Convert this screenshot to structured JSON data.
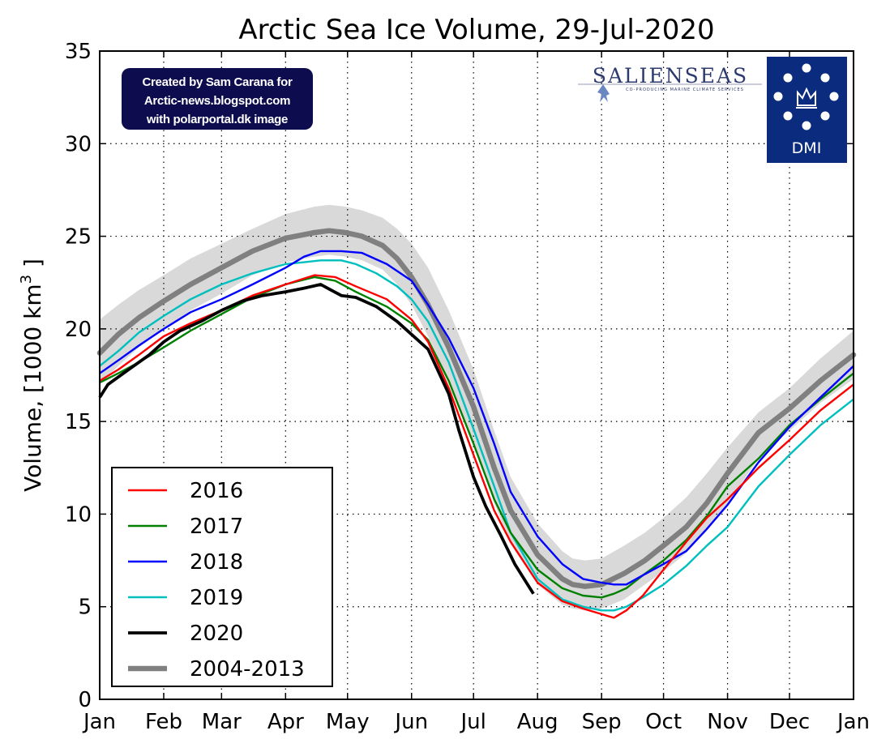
{
  "chart_data": {
    "type": "line",
    "title": "Arctic Sea Ice Volume, 29-Jul-2020",
    "xlabel": "",
    "ylabel_main": "Volume, [1000 km",
    "ylabel_sup": "3",
    "ylabel_end": " ]",
    "ylim": [
      0,
      35
    ],
    "yticks": [
      0,
      5,
      10,
      15,
      20,
      25,
      30,
      35
    ],
    "ytick_labels": [
      "0",
      "5",
      "10",
      "15",
      "20",
      "25",
      "30",
      "35"
    ],
    "x_unit": "day of year",
    "xlim": [
      1,
      366
    ],
    "xticks": [
      1,
      32,
      60,
      91,
      121,
      152,
      182,
      213,
      244,
      274,
      305,
      335,
      366
    ],
    "xtick_labels": [
      "Jan",
      "Feb",
      "Mar",
      "Apr",
      "May",
      "Jun",
      "Jul",
      "Aug",
      "Sep",
      "Oct",
      "Nov",
      "Dec",
      "Jan"
    ],
    "grid": true,
    "legend_position": "bottom-left",
    "series": [
      {
        "name": "2016",
        "color": "#ff0000",
        "width": 2.4,
        "x": [
          1,
          10,
          20,
          32,
          45,
          60,
          75,
          91,
          105,
          115,
          125,
          140,
          152,
          160,
          170,
          182,
          192,
          200,
          213,
          225,
          235,
          244,
          250,
          256,
          264,
          274,
          285,
          295,
          305,
          320,
          335,
          350,
          366
        ],
        "y": [
          17.2,
          17.8,
          18.6,
          19.6,
          20.3,
          21.0,
          21.8,
          22.4,
          22.9,
          22.8,
          22.3,
          21.6,
          20.5,
          19.3,
          16.8,
          13.2,
          10.2,
          8.5,
          6.3,
          5.3,
          4.9,
          4.6,
          4.4,
          4.8,
          5.6,
          7.0,
          8.5,
          9.8,
          10.8,
          12.5,
          14.0,
          15.6,
          17.0
        ]
      },
      {
        "name": "2017",
        "color": "#008000",
        "width": 2.4,
        "x": [
          1,
          10,
          20,
          32,
          45,
          60,
          75,
          91,
          105,
          115,
          125,
          140,
          152,
          160,
          170,
          182,
          192,
          200,
          213,
          225,
          235,
          244,
          250,
          256,
          264,
          274,
          285,
          295,
          305,
          320,
          335,
          350,
          366
        ],
        "y": [
          17.1,
          17.6,
          18.2,
          19.0,
          19.9,
          20.8,
          21.7,
          22.4,
          22.8,
          22.6,
          22.0,
          21.2,
          20.3,
          19.4,
          17.2,
          13.8,
          10.8,
          9.0,
          7.0,
          6.0,
          5.6,
          5.5,
          5.7,
          6.0,
          6.7,
          7.5,
          8.6,
          9.9,
          11.5,
          13.0,
          14.8,
          16.2,
          17.6
        ]
      },
      {
        "name": "2018",
        "color": "#0000ff",
        "width": 2.4,
        "x": [
          1,
          10,
          20,
          32,
          45,
          60,
          75,
          91,
          100,
          108,
          118,
          128,
          140,
          152,
          160,
          170,
          182,
          192,
          200,
          213,
          225,
          235,
          244,
          250,
          256,
          264,
          274,
          285,
          295,
          305,
          320,
          335,
          350,
          366
        ],
        "y": [
          17.6,
          18.3,
          19.1,
          20.0,
          20.9,
          21.6,
          22.4,
          23.3,
          23.9,
          24.2,
          24.2,
          24.1,
          23.5,
          22.6,
          21.3,
          19.5,
          16.8,
          13.8,
          11.2,
          8.8,
          7.3,
          6.5,
          6.3,
          6.2,
          6.2,
          6.7,
          7.3,
          8.0,
          9.2,
          10.5,
          12.8,
          14.7,
          16.3,
          18.0
        ]
      },
      {
        "name": "2019",
        "color": "#00bfbf",
        "width": 2.4,
        "x": [
          1,
          10,
          20,
          32,
          45,
          60,
          75,
          91,
          100,
          108,
          118,
          125,
          135,
          145,
          152,
          160,
          170,
          182,
          192,
          200,
          213,
          225,
          235,
          244,
          250,
          256,
          264,
          274,
          285,
          295,
          305,
          320,
          335,
          350,
          366
        ],
        "y": [
          18.0,
          18.8,
          19.8,
          20.7,
          21.6,
          22.4,
          23.0,
          23.5,
          23.6,
          23.7,
          23.7,
          23.5,
          23.0,
          22.3,
          21.6,
          20.4,
          18.2,
          14.6,
          11.5,
          9.0,
          6.5,
          5.4,
          5.0,
          4.8,
          4.8,
          5.0,
          5.5,
          6.2,
          7.2,
          8.3,
          9.3,
          11.5,
          13.2,
          14.8,
          16.2
        ]
      },
      {
        "name": "2020",
        "color": "#000000",
        "width": 3.8,
        "x": [
          1,
          5,
          15,
          25,
          32,
          40,
          50,
          60,
          70,
          80,
          91,
          100,
          108,
          113,
          118,
          125,
          135,
          145,
          152,
          160,
          170,
          175,
          182,
          188,
          195,
          202,
          211
        ],
        "y": [
          16.3,
          17.0,
          17.8,
          18.6,
          19.3,
          19.9,
          20.4,
          21.0,
          21.5,
          21.8,
          22.0,
          22.2,
          22.4,
          22.1,
          21.8,
          21.7,
          21.2,
          20.4,
          19.7,
          18.9,
          16.5,
          14.5,
          12.0,
          10.4,
          8.9,
          7.3,
          5.7
        ]
      }
    ],
    "mean_series": {
      "name": "2004-2013",
      "color": "#808080",
      "width": 6.5,
      "x": [
        1,
        10,
        20,
        32,
        45,
        60,
        75,
        91,
        105,
        112,
        120,
        128,
        138,
        145,
        152,
        160,
        170,
        182,
        192,
        200,
        213,
        225,
        230,
        236,
        244,
        255,
        265,
        274,
        285,
        295,
        305,
        320,
        335,
        350,
        366
      ],
      "y": [
        18.7,
        19.7,
        20.6,
        21.5,
        22.4,
        23.3,
        24.2,
        24.9,
        25.2,
        25.3,
        25.2,
        25.0,
        24.5,
        23.8,
        22.8,
        21.3,
        19.0,
        15.8,
        12.5,
        10.2,
        7.8,
        6.5,
        6.2,
        6.1,
        6.2,
        6.8,
        7.5,
        8.3,
        9.3,
        10.6,
        12.2,
        14.4,
        15.7,
        17.2,
        18.6
      ]
    },
    "band": {
      "color": "#d9d9d9",
      "x": [
        1,
        10,
        20,
        32,
        45,
        60,
        75,
        91,
        105,
        112,
        120,
        128,
        138,
        145,
        152,
        160,
        170,
        182,
        192,
        200,
        213,
        225,
        230,
        236,
        244,
        255,
        265,
        274,
        285,
        295,
        305,
        320,
        335,
        350,
        366
      ],
      "upper": [
        20.5,
        21.3,
        22.1,
        22.9,
        23.8,
        24.6,
        25.4,
        26.2,
        26.6,
        26.7,
        26.6,
        26.4,
        26.0,
        25.4,
        24.6,
        23.3,
        21.0,
        17.8,
        14.5,
        12.0,
        9.5,
        8.0,
        7.6,
        7.5,
        7.6,
        8.3,
        9.0,
        9.8,
        10.9,
        12.2,
        13.6,
        15.5,
        16.8,
        18.4,
        19.9
      ],
      "lower": [
        17.0,
        18.0,
        19.0,
        20.0,
        21.0,
        21.9,
        22.9,
        23.6,
        23.9,
        24.0,
        23.9,
        23.7,
        23.2,
        22.4,
        21.3,
        19.6,
        17.2,
        13.8,
        10.6,
        8.4,
        6.2,
        5.1,
        4.9,
        4.8,
        4.9,
        5.4,
        6.2,
        6.9,
        7.9,
        9.1,
        10.6,
        13.0,
        14.5,
        16.0,
        17.3
      ]
    }
  },
  "credit": {
    "line1": "Created by Sam Carana for",
    "line2": "Arctic-news.blogspot.com",
    "line3": "with polarportal.dk image"
  },
  "logos": {
    "salienseas": "SALIENSEAS",
    "salienseas_sub": "CO-PRODUCING MARINE CLIMATE SERVICES",
    "dmi": "DMI"
  }
}
